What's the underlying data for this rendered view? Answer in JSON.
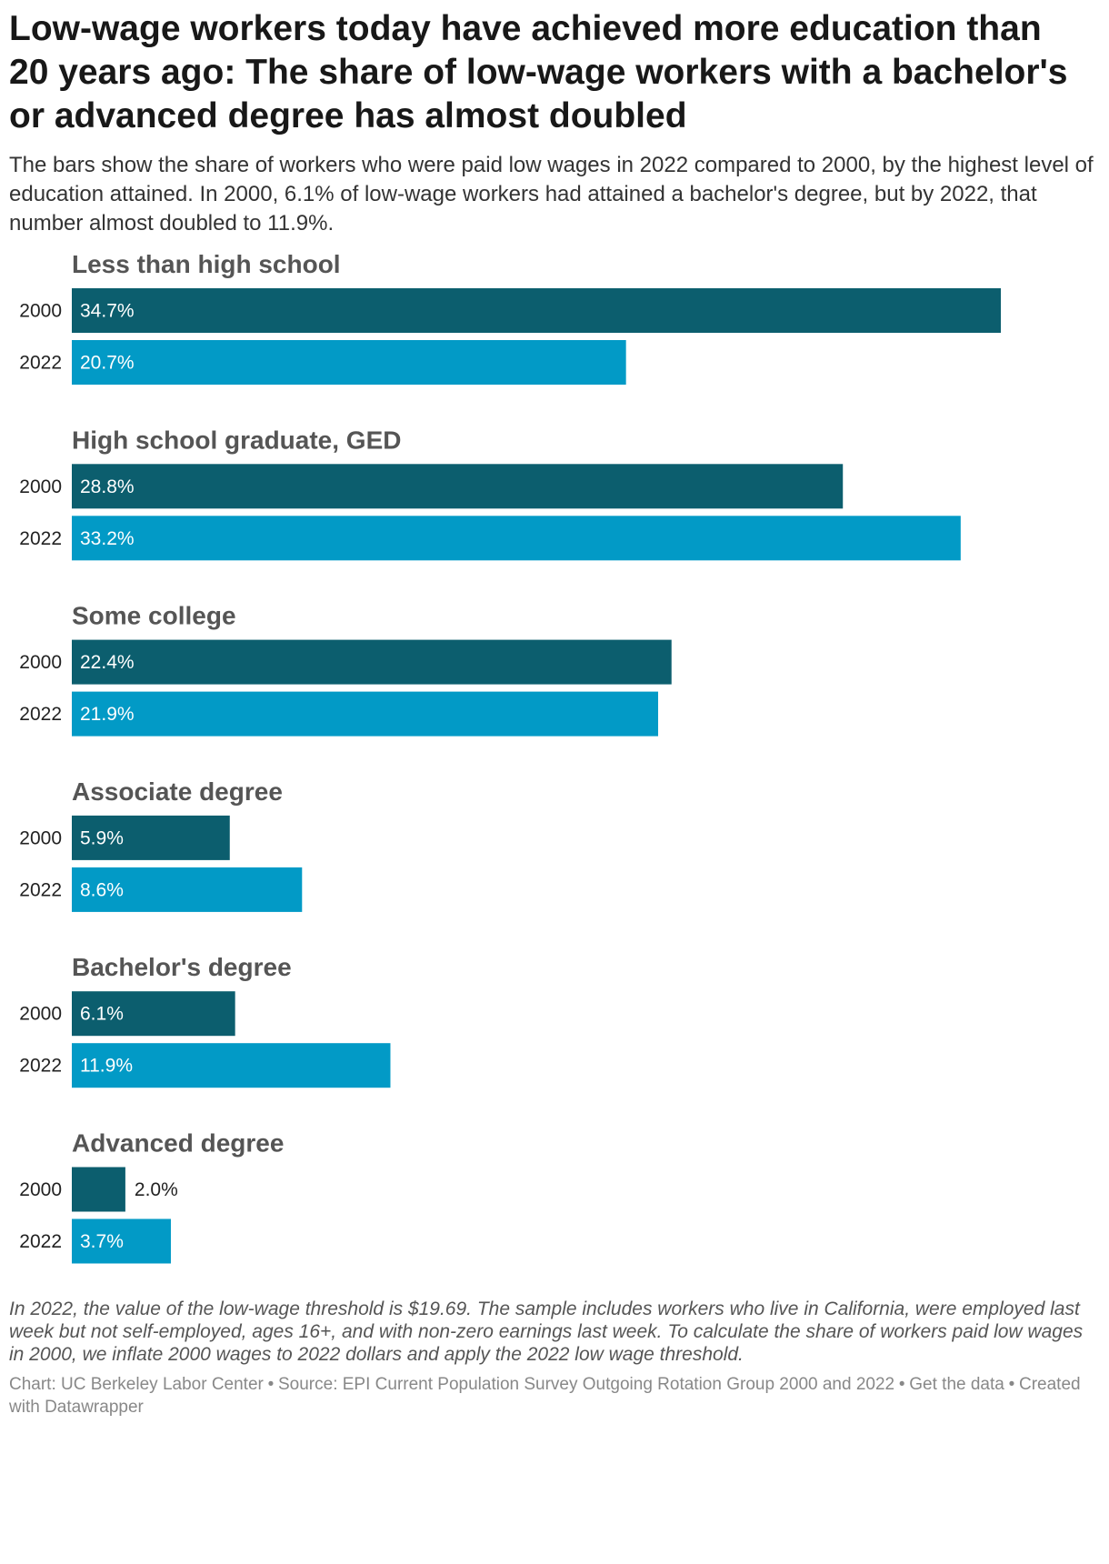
{
  "title": "Low-wage workers today have achieved more education than 20 years ago: The share of low-wage workers with a bachelor's or advanced degree has almost doubled",
  "subtitle": "The bars show the share of workers who were paid low wages in 2022 compared to 2000, by the highest level of education attained. In 2000, 6.1% of low-wage workers had attained a bachelor's degree, but by 2022, that number almost doubled to 11.9%.",
  "notes": "In 2022, the value of the low-wage threshold is $19.69. The sample includes workers who live in California, were employed last week but not self-employed, ages 16+, and with non-zero earnings last week. To calculate the share of workers paid low wages in 2000, we inflate 2000 wages to 2022 dollars and apply the 2022 low wage threshold.",
  "footer": {
    "chart_credit": "Chart: UC Berkeley Labor Center",
    "source": "Source: EPI Current Population Survey Outgoing Rotation Group 2000 and 2022",
    "get_data": "Get the data",
    "created_with": "Created with Datawrapper",
    "separator": "•"
  },
  "colors": {
    "series_2000": "#0c5e6e",
    "series_2022": "#029ac6",
    "label_inside": "#ffffff",
    "label_outside": "#222222"
  },
  "chart_data": {
    "type": "bar",
    "orientation": "horizontal",
    "grouped": true,
    "value_format": "{v}%",
    "categories": [
      "Less than high school",
      "High school graduate, GED",
      "Some college",
      "Associate degree",
      "Bachelor's degree",
      "Advanced degree"
    ],
    "series": [
      {
        "name": "2000",
        "values": [
          34.7,
          28.8,
          22.4,
          5.9,
          6.1,
          2.0
        ]
      },
      {
        "name": "2022",
        "values": [
          20.7,
          33.2,
          21.9,
          8.6,
          11.9,
          3.7
        ]
      }
    ],
    "xlim": [
      0,
      34.7
    ],
    "title": "",
    "xlabel": "",
    "ylabel": "",
    "grid": false,
    "legend": "none"
  }
}
